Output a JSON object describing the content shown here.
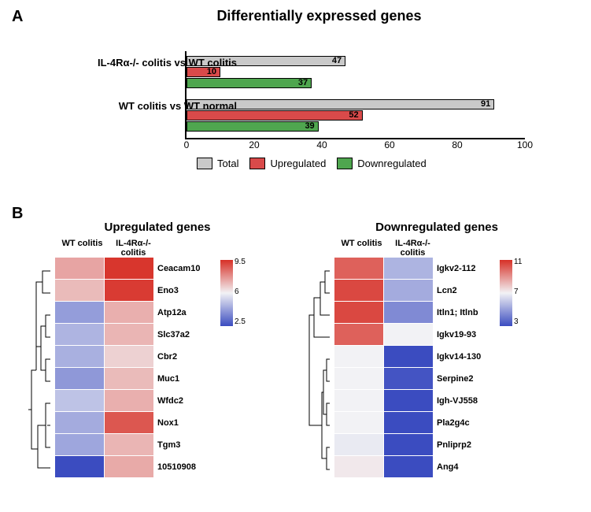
{
  "panelA": {
    "label": "A",
    "title": "Differentially expressed genes",
    "type": "bar",
    "xlim": [
      0,
      100
    ],
    "xtick_step": 20,
    "xticks": [
      0,
      20,
      40,
      60,
      80,
      100
    ],
    "categories": [
      "IL-4Rα-/- colitis vs WT colitis",
      "WT colitis vs WT normal"
    ],
    "series": [
      {
        "name": "Total",
        "color": "#c9c9c9",
        "values": [
          47,
          91
        ]
      },
      {
        "name": "Upregulated",
        "color": "#d94a4a",
        "values": [
          10,
          52
        ]
      },
      {
        "name": "Downregulated",
        "color": "#4fa64f",
        "values": [
          37,
          39
        ]
      }
    ],
    "bar_border": "#000000",
    "axis_color": "#000000",
    "label_fontsize": 13
  },
  "panelB": {
    "label": "B",
    "up": {
      "title": "Upregulated genes",
      "columns": [
        "WT colitis",
        "IL-4Rα-/- colitis"
      ],
      "genes": [
        "Ceacam10",
        "Eno3",
        "Atp12a",
        "Slc37a2",
        "Cbr2",
        "Muc1",
        "Wfdc2",
        "Nox1",
        "Tgm3",
        "10510908"
      ],
      "values": [
        [
          7.4,
          9.4
        ],
        [
          7.0,
          9.3
        ],
        [
          4.2,
          7.2
        ],
        [
          4.7,
          7.1
        ],
        [
          4.6,
          6.6
        ],
        [
          4.1,
          7.0
        ],
        [
          5.0,
          7.2
        ],
        [
          4.5,
          8.8
        ],
        [
          4.4,
          7.1
        ],
        [
          2.5,
          7.3
        ]
      ],
      "scale_min": 2.5,
      "scale_mid": 6,
      "scale_max": 9.5,
      "scale_labels": [
        "9.5",
        "6",
        "2.5"
      ]
    },
    "down": {
      "title": "Downregulated genes",
      "columns": [
        "WT colitis",
        "IL-4Rα-/- colitis"
      ],
      "genes": [
        "Igkv2-112",
        "Lcn2",
        "Itln1; Itlnb",
        "Igkv19-93",
        "Igkv14-130",
        "Serpine2",
        "Igh-VJ558",
        "Pla2g4c",
        "Pnliprp2",
        "Ang4"
      ],
      "values": [
        [
          10.0,
          5.5
        ],
        [
          10.5,
          5.3
        ],
        [
          10.5,
          4.5
        ],
        [
          10.0,
          7.0
        ],
        [
          7.0,
          3.0
        ],
        [
          7.0,
          3.2
        ],
        [
          7.0,
          3.0
        ],
        [
          7.0,
          3.0
        ],
        [
          6.8,
          3.0
        ],
        [
          7.2,
          3.0
        ]
      ],
      "scale_min": 3,
      "scale_mid": 7,
      "scale_max": 11,
      "scale_labels": [
        "11",
        "7",
        "3"
      ]
    },
    "color_low": "#3b4cc0",
    "color_mid": "#f2f2f5",
    "color_high": "#d73027",
    "dendro_color": "#000000"
  }
}
